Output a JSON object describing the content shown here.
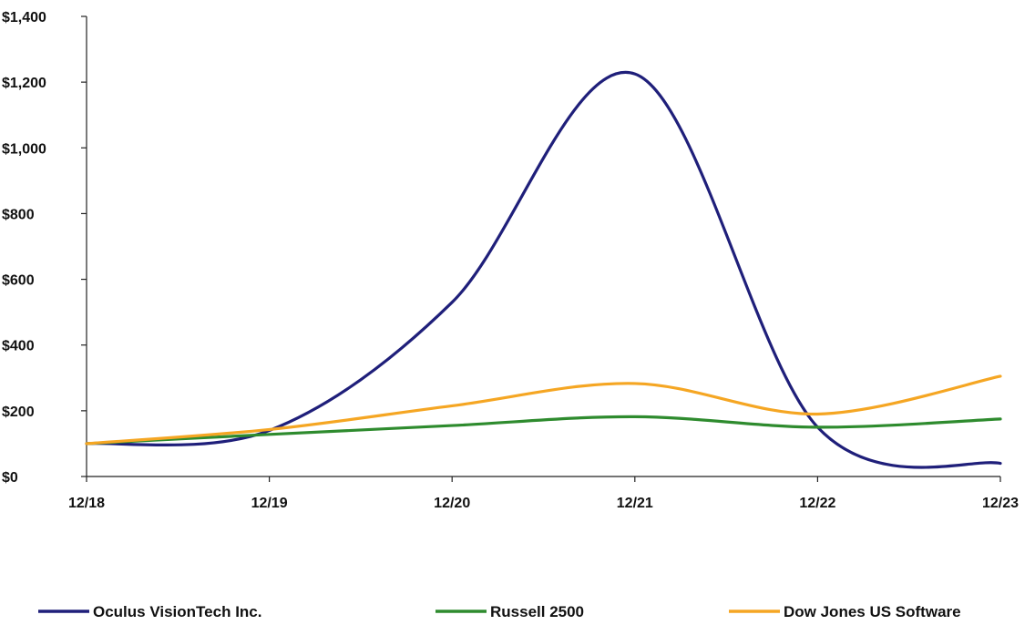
{
  "chart_data": {
    "type": "line",
    "title": "",
    "xlabel": "",
    "ylabel": "",
    "categories": [
      "12/18",
      "12/19",
      "12/20",
      "12/21",
      "12/22",
      "12/23"
    ],
    "y_ticks": [
      "$0",
      "$200",
      "$400",
      "$600",
      "$800",
      "$1,000",
      "$1,200",
      "$1,400"
    ],
    "ylim": [
      0,
      1400
    ],
    "grid": false,
    "legend_position": "bottom",
    "series": [
      {
        "name": "Oculus VisionTech Inc.",
        "color": "#1f1f7a",
        "values": [
          100,
          140,
          530,
          1225,
          150,
          40
        ]
      },
      {
        "name": "Russell 2500",
        "color": "#2e8b2e",
        "values": [
          100,
          128,
          155,
          182,
          150,
          175
        ]
      },
      {
        "name": "Dow Jones US Software",
        "color": "#f5a623",
        "values": [
          100,
          143,
          215,
          283,
          190,
          305
        ]
      }
    ]
  }
}
